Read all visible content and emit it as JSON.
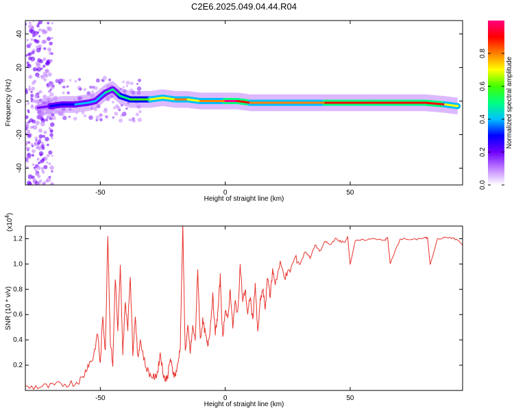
{
  "title": "C2E6.2025.049.04.44.R04",
  "chart_data": [
    {
      "type": "heatmap",
      "xlabel": "Height of straight line (km)",
      "ylabel": "Frequency (Hz)",
      "xlim": [
        -80,
        95
      ],
      "ylim": [
        -50,
        48
      ],
      "xticks": [
        -50,
        0,
        50
      ],
      "xtick_labels": [
        "-50",
        "0",
        "50"
      ],
      "yticks": [
        -40,
        -20,
        0,
        20,
        40
      ],
      "ytick_labels": [
        "-40",
        "-20",
        "0",
        "20",
        "40"
      ],
      "colorbar": {
        "label": "Normalized spectral amplitude",
        "range": [
          0,
          1
        ],
        "ticks": [
          0.0,
          0.2,
          0.4,
          0.6,
          0.8
        ],
        "tick_labels": [
          "0.0",
          "0.2",
          "0.4",
          "0.6",
          "0.8"
        ],
        "colors": [
          "#ffffff",
          "#c080ff",
          "#7000ff",
          "#0000ff",
          "#00c0ff",
          "#00ff80",
          "#40ff00",
          "#ffff00",
          "#ff8000",
          "#ff0000",
          "#ff0080"
        ]
      },
      "ridge": [
        {
          "x": -75,
          "y": -4,
          "a": 0.15
        },
        {
          "x": -70,
          "y": -3,
          "a": 0.3
        },
        {
          "x": -65,
          "y": -2,
          "a": 0.3
        },
        {
          "x": -60,
          "y": -2,
          "a": 0.35
        },
        {
          "x": -55,
          "y": -1,
          "a": 0.35
        },
        {
          "x": -52,
          "y": 0,
          "a": 0.4
        },
        {
          "x": -48,
          "y": 5,
          "a": 0.45
        },
        {
          "x": -45,
          "y": 7,
          "a": 0.45
        },
        {
          "x": -42,
          "y": 3,
          "a": 0.5
        },
        {
          "x": -38,
          "y": 1,
          "a": 0.55
        },
        {
          "x": -34,
          "y": 1,
          "a": 0.6
        },
        {
          "x": -30,
          "y": 1,
          "a": 0.7
        },
        {
          "x": -25,
          "y": 2,
          "a": 0.7
        },
        {
          "x": -20,
          "y": 1,
          "a": 0.75
        },
        {
          "x": -15,
          "y": 1,
          "a": 0.7
        },
        {
          "x": -10,
          "y": 0,
          "a": 0.8
        },
        {
          "x": -5,
          "y": 0,
          "a": 0.8
        },
        {
          "x": 0,
          "y": 0,
          "a": 0.95
        },
        {
          "x": 5,
          "y": 0,
          "a": 0.85
        },
        {
          "x": 10,
          "y": -1,
          "a": 0.8
        },
        {
          "x": 15,
          "y": -1,
          "a": 0.8
        },
        {
          "x": 20,
          "y": -1,
          "a": 0.75
        },
        {
          "x": 30,
          "y": -1,
          "a": 0.8
        },
        {
          "x": 40,
          "y": -1,
          "a": 0.85
        },
        {
          "x": 50,
          "y": -1,
          "a": 0.9
        },
        {
          "x": 60,
          "y": -1,
          "a": 0.9
        },
        {
          "x": 70,
          "y": -1,
          "a": 0.9
        },
        {
          "x": 80,
          "y": -1,
          "a": 0.9
        },
        {
          "x": 88,
          "y": -2,
          "a": 0.7
        },
        {
          "x": 93,
          "y": -3,
          "a": 0.5
        }
      ]
    },
    {
      "type": "line",
      "xlabel": "Height of straight line (km)",
      "ylabel": "SNR (10 * v/v)",
      "y_multiplier_label": "(x10",
      "y_multiplier_exponent": "4",
      "y_multiplier_close": ")",
      "xlim": [
        -80,
        95
      ],
      "ylim": [
        0,
        1.3
      ],
      "xticks": [
        -50,
        0,
        50
      ],
      "xtick_labels": [
        "-50",
        "0",
        "50"
      ],
      "yticks": [
        0.2,
        0.4,
        0.6,
        0.8,
        1.0,
        1.2
      ],
      "ytick_labels": [
        "0.2",
        "0.4",
        "0.6",
        "0.8",
        "1.0",
        "1.2"
      ],
      "series": [
        {
          "color": "#e8302a",
          "x": [
            -80,
            -75,
            -70,
            -65,
            -60,
            -57,
            -55,
            -53,
            -51,
            -50,
            -49,
            -48,
            -47,
            -46,
            -45,
            -44,
            -43,
            -42,
            -41,
            -40,
            -39,
            -38,
            -37,
            -36,
            -35,
            -34,
            -32,
            -30,
            -28,
            -27,
            -26,
            -25,
            -24,
            -23,
            -22,
            -21,
            -20,
            -19,
            -18,
            -17,
            -16,
            -15,
            -14,
            -13,
            -12,
            -11,
            -10,
            -9,
            -8,
            -7,
            -6,
            -5,
            -4,
            -3,
            -2,
            -1,
            0,
            1,
            2,
            3,
            4,
            5,
            6,
            7,
            8,
            9,
            10,
            11,
            12,
            13,
            14,
            15,
            16,
            17,
            18,
            19,
            20,
            22,
            24,
            26,
            28,
            30,
            32,
            34,
            36,
            38,
            40,
            42,
            44,
            46,
            48,
            49,
            50,
            52,
            55,
            60,
            64,
            65,
            66,
            70,
            75,
            80,
            81,
            82,
            85,
            90,
            93,
            95
          ],
          "y": [
            0.02,
            0.03,
            0.03,
            0.05,
            0.06,
            0.1,
            0.2,
            0.25,
            0.45,
            0.2,
            0.6,
            0.3,
            1.25,
            0.4,
            0.2,
            0.9,
            0.45,
            0.98,
            0.3,
            0.7,
            0.5,
            0.92,
            0.3,
            0.6,
            0.25,
            0.4,
            0.2,
            0.12,
            0.1,
            0.15,
            0.3,
            0.15,
            0.08,
            0.12,
            0.25,
            0.15,
            0.12,
            0.2,
            0.35,
            1.29,
            0.3,
            0.5,
            0.3,
            0.5,
            0.4,
            0.95,
            0.4,
            0.55,
            0.45,
            0.35,
            0.5,
            0.75,
            0.45,
            0.6,
            0.9,
            0.4,
            0.65,
            0.55,
            0.8,
            0.5,
            0.7,
            0.6,
            1.0,
            0.7,
            0.8,
            0.6,
            0.75,
            0.55,
            0.85,
            0.45,
            0.7,
            0.8,
            0.65,
            0.9,
            0.75,
            0.95,
            0.85,
            1.0,
            0.9,
            0.95,
            1.05,
            1.0,
            1.1,
            1.05,
            1.15,
            1.1,
            1.18,
            1.15,
            1.2,
            1.18,
            1.17,
            1.22,
            1.0,
            1.18,
            1.19,
            1.2,
            1.19,
            1.21,
            1.0,
            1.2,
            1.19,
            1.21,
            1.2,
            1.0,
            1.2,
            1.21,
            1.19,
            1.15
          ]
        }
      ]
    }
  ]
}
